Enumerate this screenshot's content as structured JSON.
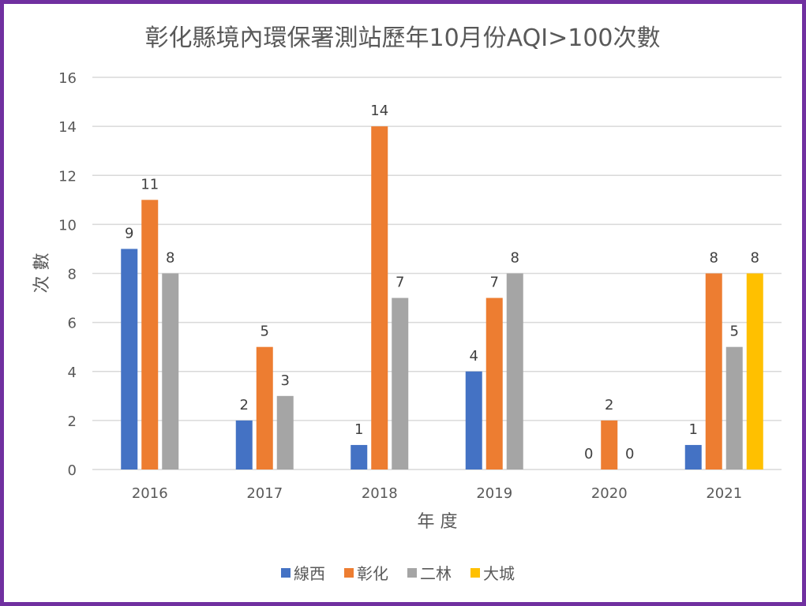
{
  "chart_data": {
    "type": "bar",
    "title": "彰化縣境內環保署測站歷年10月份AQI>100次數",
    "xlabel": "年 度",
    "ylabel": "次 數",
    "categories": [
      "2016",
      "2017",
      "2018",
      "2019",
      "2020",
      "2021"
    ],
    "series": [
      {
        "name": "線西",
        "color": "#4472C4",
        "values": [
          9,
          2,
          1,
          4,
          0,
          1
        ]
      },
      {
        "name": "彰化",
        "color": "#ED7D31",
        "values": [
          11,
          5,
          14,
          7,
          2,
          8
        ]
      },
      {
        "name": "二林",
        "color": "#A5A5A5",
        "values": [
          8,
          3,
          7,
          8,
          0,
          5
        ]
      },
      {
        "name": "大城",
        "color": "#FFC000",
        "values": [
          null,
          null,
          null,
          null,
          null,
          8
        ]
      }
    ],
    "ylim": [
      0,
      16
    ],
    "yticks": [
      0,
      2,
      4,
      6,
      8,
      10,
      12,
      14,
      16
    ],
    "grid": true,
    "legend": "bottom",
    "data_labels": true
  },
  "colors": {
    "border": "#7030A0",
    "gridline": "#D9D9D9",
    "text": "#595959"
  }
}
